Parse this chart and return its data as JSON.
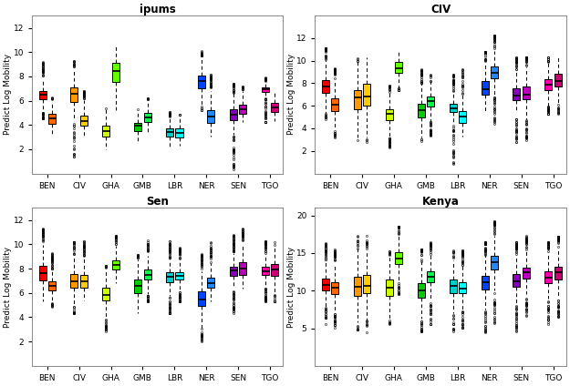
{
  "countries": [
    "BEN",
    "CIV",
    "GHA",
    "GMB",
    "LBR",
    "NER",
    "SEN",
    "TGO"
  ],
  "titles": [
    "ipums",
    "CIV",
    "Sen",
    "Kenya"
  ],
  "ylabel": "Predict Log Mobility",
  "box_colors": [
    [
      "#EE0000",
      "#FF6600"
    ],
    [
      "#FF9900",
      "#FFCC00"
    ],
    [
      "#CCFF00",
      "#66FF00"
    ],
    [
      "#00CC00",
      "#00FF44"
    ],
    [
      "#00CCCC",
      "#00FFFF"
    ],
    [
      "#0044FF",
      "#2288FF"
    ],
    [
      "#8800BB",
      "#BB00BB"
    ],
    [
      "#FF00AA",
      "#CC0077"
    ]
  ],
  "panel_data": {
    "ipums": {
      "BEN": [
        [
          4.5,
          6.0,
          6.4,
          6.9,
          9.2
        ],
        [
          3.2,
          4.0,
          4.5,
          5.0,
          6.3
        ]
      ],
      "CIV": [
        [
          1.3,
          5.8,
          6.5,
          7.2,
          9.3
        ],
        [
          3.0,
          3.8,
          4.3,
          4.9,
          6.8
        ]
      ],
      "GHA": [
        [
          2.0,
          2.9,
          3.5,
          4.1,
          5.4
        ],
        [
          5.2,
          7.3,
          8.6,
          9.4,
          10.5
        ]
      ],
      "GMB": [
        [
          2.5,
          3.4,
          3.8,
          4.3,
          5.3
        ],
        [
          3.3,
          4.1,
          4.6,
          5.1,
          6.2
        ]
      ],
      "LBR": [
        [
          2.2,
          2.9,
          3.4,
          3.9,
          5.1
        ],
        [
          2.3,
          2.9,
          3.3,
          3.8,
          4.9
        ]
      ],
      "NER": [
        [
          5.2,
          6.8,
          7.5,
          8.3,
          10.2
        ],
        [
          3.0,
          4.0,
          4.8,
          5.3,
          8.2
        ]
      ],
      "SEN": [
        [
          0.3,
          4.3,
          4.9,
          5.4,
          7.4
        ],
        [
          4.2,
          4.8,
          5.3,
          5.8,
          7.2
        ]
      ],
      "TGO": [
        [
          4.2,
          6.7,
          7.0,
          7.2,
          7.9
        ],
        [
          4.3,
          4.9,
          5.4,
          5.9,
          6.7
        ]
      ]
    },
    "CIV": {
      "BEN": [
        [
          4.8,
          6.8,
          7.6,
          8.4,
          11.2
        ],
        [
          3.2,
          5.3,
          5.9,
          6.8,
          9.3
        ]
      ],
      "CIV": [
        [
          2.8,
          5.3,
          7.0,
          7.8,
          10.3
        ],
        [
          2.8,
          5.6,
          7.1,
          8.3,
          10.3
        ]
      ],
      "GHA": [
        [
          2.3,
          4.6,
          5.0,
          5.8,
          7.8
        ],
        [
          7.3,
          8.8,
          9.3,
          10.0,
          10.8
        ]
      ],
      "GMB": [
        [
          2.8,
          4.8,
          5.3,
          6.3,
          9.3
        ],
        [
          3.3,
          5.8,
          6.3,
          7.0,
          8.8
        ]
      ],
      "LBR": [
        [
          0.8,
          5.3,
          5.8,
          6.3,
          8.8
        ],
        [
          3.3,
          4.3,
          4.8,
          5.6,
          9.3
        ]
      ],
      "NER": [
        [
          5.3,
          6.8,
          7.3,
          8.3,
          10.8
        ],
        [
          4.3,
          8.3,
          8.8,
          9.6,
          12.3
        ]
      ],
      "SEN": [
        [
          2.8,
          6.3,
          6.8,
          7.6,
          10.3
        ],
        [
          2.8,
          6.3,
          7.0,
          7.8,
          10.3
        ]
      ],
      "TGO": [
        [
          5.3,
          7.3,
          7.8,
          8.6,
          10.3
        ],
        [
          5.3,
          7.6,
          8.3,
          9.0,
          10.3
        ]
      ]
    },
    "Sen": {
      "BEN": [
        [
          5.3,
          6.8,
          7.8,
          8.3,
          11.3
        ],
        [
          4.8,
          6.1,
          6.3,
          7.0,
          9.3
        ]
      ],
      "CIV": [
        [
          4.3,
          6.3,
          7.0,
          7.6,
          10.3
        ],
        [
          5.3,
          6.3,
          6.8,
          7.6,
          10.3
        ]
      ],
      "GHA": [
        [
          2.8,
          5.3,
          5.6,
          6.6,
          8.3
        ],
        [
          6.8,
          7.8,
          8.3,
          8.8,
          10.8
        ]
      ],
      "GMB": [
        [
          4.3,
          5.8,
          6.0,
          7.3,
          9.3
        ],
        [
          5.3,
          7.0,
          7.4,
          8.0,
          10.3
        ]
      ],
      "LBR": [
        [
          4.3,
          6.8,
          7.3,
          7.8,
          10.3
        ],
        [
          5.3,
          7.0,
          7.3,
          7.8,
          9.8
        ]
      ],
      "NER": [
        [
          1.8,
          4.8,
          5.1,
          6.3,
          9.3
        ],
        [
          5.3,
          6.3,
          6.6,
          7.3,
          10.3
        ]
      ],
      "SEN": [
        [
          4.3,
          7.3,
          7.6,
          8.3,
          10.8
        ],
        [
          6.3,
          7.3,
          7.8,
          8.6,
          11.3
        ]
      ],
      "TGO": [
        [
          5.3,
          7.3,
          7.8,
          8.3,
          10.3
        ],
        [
          5.3,
          7.3,
          7.8,
          8.6,
          10.3
        ]
      ]
    },
    "Kenya": {
      "BEN": [
        [
          5.5,
          9.8,
          10.8,
          11.8,
          16.5
        ],
        [
          5.0,
          9.3,
          10.3,
          11.3,
          15.5
        ]
      ],
      "CIV": [
        [
          4.5,
          8.8,
          10.8,
          12.3,
          17.5
        ],
        [
          4.5,
          9.3,
          11.3,
          12.8,
          17.5
        ]
      ],
      "GHA": [
        [
          5.5,
          8.8,
          10.3,
          11.8,
          15.5
        ],
        [
          9.5,
          13.3,
          14.3,
          15.3,
          18.5
        ]
      ],
      "GMB": [
        [
          4.5,
          8.8,
          9.8,
          11.3,
          15.5
        ],
        [
          5.5,
          10.8,
          11.8,
          12.8,
          16.5
        ]
      ],
      "LBR": [
        [
          4.5,
          9.3,
          10.8,
          11.8,
          15.5
        ],
        [
          5.0,
          9.3,
          10.3,
          11.3,
          15.5
        ]
      ],
      "NER": [
        [
          4.5,
          9.8,
          10.8,
          12.3,
          16.5
        ],
        [
          5.5,
          12.3,
          13.3,
          14.8,
          19.3
        ]
      ],
      "SEN": [
        [
          4.5,
          10.3,
          11.3,
          12.3,
          16.5
        ],
        [
          6.5,
          11.3,
          12.3,
          13.3,
          17.3
        ]
      ],
      "TGO": [
        [
          5.5,
          10.8,
          11.8,
          12.8,
          16.5
        ],
        [
          6.5,
          11.3,
          12.3,
          13.3,
          17.3
        ]
      ]
    }
  },
  "ylims": {
    "ipums": [
      0,
      13
    ],
    "CIV": [
      0,
      14
    ],
    "Sen": [
      0,
      13
    ],
    "Kenya": [
      0,
      21
    ]
  },
  "yticks": {
    "ipums": [
      2,
      4,
      6,
      8,
      10,
      12
    ],
    "CIV": [
      2,
      4,
      6,
      8,
      10,
      12
    ],
    "Sen": [
      2,
      4,
      6,
      8,
      10,
      12
    ],
    "Kenya": [
      5,
      10,
      15,
      20
    ]
  }
}
